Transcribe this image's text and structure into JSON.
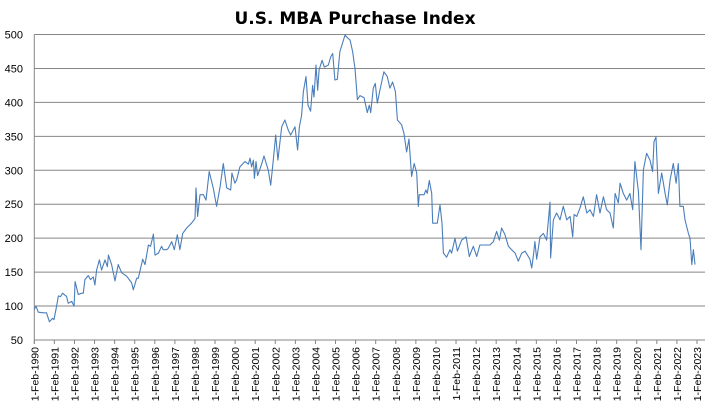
{
  "chart_data": {
    "type": "line",
    "title": "U.S. MBA Purchase Index",
    "xlabel": "",
    "ylabel": "",
    "ylim": [
      50,
      500
    ],
    "xlim": [
      1990.0,
      2023.0
    ],
    "grid": true,
    "legend": "none",
    "line_color": "#4a7ebb",
    "y_ticks": [
      50,
      100,
      150,
      200,
      250,
      300,
      350,
      400,
      450,
      500
    ],
    "x_tick_labels": [
      "1-Feb-1990",
      "1-Feb-1991",
      "1-Feb-1992",
      "1-Feb-1993",
      "1-Feb-1994",
      "1-Feb-1995",
      "1-Feb-1996",
      "1-Feb-1997",
      "1-Feb-1998",
      "1-Feb-1999",
      "1-Feb-2000",
      "1-Feb-2001",
      "1-Feb-2002",
      "1-Feb-2003",
      "1-Feb-2004",
      "1-Feb-2005",
      "1-Feb-2006",
      "1-Feb-2007",
      "1-Feb-2008",
      "1-Feb-2009",
      "1-Feb-2010",
      "1-Feb-2011",
      "1-Feb-2012",
      "1-Feb-2013",
      "1-Feb-2014",
      "1-Feb-2015",
      "1-Feb-2016",
      "1-Feb-2017",
      "1-Feb-2018",
      "1-Feb-2019",
      "1-Feb-2020",
      "1-Feb-2021",
      "1-Feb-2022",
      "1-Feb-2023"
    ],
    "series": [
      {
        "name": "MBA Purchase Index",
        "points": [
          [
            1990.0,
            95
          ],
          [
            1990.08,
            100
          ],
          [
            1990.2,
            91
          ],
          [
            1990.45,
            90
          ],
          [
            1990.61,
            90
          ],
          [
            1990.75,
            77
          ],
          [
            1990.91,
            82
          ],
          [
            1990.98,
            80
          ],
          [
            1991.11,
            100
          ],
          [
            1991.2,
            115
          ],
          [
            1991.31,
            114
          ],
          [
            1991.41,
            119
          ],
          [
            1991.61,
            114
          ],
          [
            1991.69,
            104
          ],
          [
            1991.86,
            107
          ],
          [
            1991.98,
            100
          ],
          [
            1992.03,
            136
          ],
          [
            1992.19,
            117
          ],
          [
            1992.36,
            119
          ],
          [
            1992.44,
            119
          ],
          [
            1992.52,
            139
          ],
          [
            1992.69,
            145
          ],
          [
            1992.8,
            139
          ],
          [
            1992.94,
            143
          ],
          [
            1993.02,
            131
          ],
          [
            1993.1,
            153
          ],
          [
            1993.24,
            168
          ],
          [
            1993.35,
            153
          ],
          [
            1993.52,
            168
          ],
          [
            1993.64,
            158
          ],
          [
            1993.69,
            175
          ],
          [
            1993.85,
            161
          ],
          [
            1994.02,
            137
          ],
          [
            1994.18,
            161
          ],
          [
            1994.35,
            149
          ],
          [
            1994.6,
            144
          ],
          [
            1994.85,
            134
          ],
          [
            1994.93,
            124
          ],
          [
            1995.1,
            141
          ],
          [
            1995.18,
            141
          ],
          [
            1995.4,
            169
          ],
          [
            1995.51,
            161
          ],
          [
            1995.68,
            190
          ],
          [
            1995.79,
            188
          ],
          [
            1995.93,
            206
          ],
          [
            1996.01,
            175
          ],
          [
            1996.18,
            178
          ],
          [
            1996.34,
            188
          ],
          [
            1996.42,
            183
          ],
          [
            1996.59,
            183
          ],
          [
            1996.67,
            185
          ],
          [
            1996.84,
            195
          ],
          [
            1996.97,
            183
          ],
          [
            1997.12,
            205
          ],
          [
            1997.25,
            183
          ],
          [
            1997.39,
            207
          ],
          [
            1997.59,
            215
          ],
          [
            1997.83,
            222
          ],
          [
            1998.0,
            229
          ],
          [
            1998.05,
            274
          ],
          [
            1998.13,
            232
          ],
          [
            1998.25,
            264
          ],
          [
            1998.42,
            264
          ],
          [
            1998.55,
            256
          ],
          [
            1998.71,
            298
          ],
          [
            1998.91,
            274
          ],
          [
            1999.08,
            247
          ],
          [
            1999.25,
            276
          ],
          [
            1999.41,
            310
          ],
          [
            1999.58,
            274
          ],
          [
            1999.78,
            271
          ],
          [
            1999.84,
            296
          ],
          [
            1999.99,
            281
          ],
          [
            2000.08,
            286
          ],
          [
            2000.24,
            305
          ],
          [
            2000.49,
            313
          ],
          [
            2000.66,
            309
          ],
          [
            2000.74,
            318
          ],
          [
            2000.82,
            305
          ],
          [
            2000.91,
            315
          ],
          [
            2000.96,
            288
          ],
          [
            2001.04,
            313
          ],
          [
            2001.12,
            292
          ],
          [
            2001.32,
            309
          ],
          [
            2001.44,
            321
          ],
          [
            2001.65,
            300
          ],
          [
            2001.77,
            278
          ],
          [
            2001.9,
            315
          ],
          [
            2002.02,
            352
          ],
          [
            2002.13,
            315
          ],
          [
            2002.32,
            364
          ],
          [
            2002.48,
            374
          ],
          [
            2002.65,
            359
          ],
          [
            2002.77,
            352
          ],
          [
            2002.98,
            364
          ],
          [
            2003.11,
            330
          ],
          [
            2003.2,
            364
          ],
          [
            2003.31,
            381
          ],
          [
            2003.4,
            416
          ],
          [
            2003.53,
            438
          ],
          [
            2003.63,
            396
          ],
          [
            2003.76,
            387
          ],
          [
            2003.86,
            425
          ],
          [
            2003.93,
            408
          ],
          [
            2004.03,
            455
          ],
          [
            2004.11,
            418
          ],
          [
            2004.18,
            448
          ],
          [
            2004.33,
            462
          ],
          [
            2004.44,
            452
          ],
          [
            2004.64,
            455
          ],
          [
            2004.76,
            467
          ],
          [
            2004.86,
            472
          ],
          [
            2004.97,
            433
          ],
          [
            2005.09,
            434
          ],
          [
            2005.22,
            475
          ],
          [
            2005.47,
            499
          ],
          [
            2005.64,
            494
          ],
          [
            2005.72,
            492
          ],
          [
            2005.85,
            475
          ],
          [
            2005.97,
            450
          ],
          [
            2006.09,
            404
          ],
          [
            2006.22,
            410
          ],
          [
            2006.42,
            407
          ],
          [
            2006.58,
            385
          ],
          [
            2006.68,
            396
          ],
          [
            2006.75,
            385
          ],
          [
            2006.88,
            421
          ],
          [
            2006.98,
            428
          ],
          [
            2007.08,
            399
          ],
          [
            2007.21,
            418
          ],
          [
            2007.41,
            445
          ],
          [
            2007.58,
            438
          ],
          [
            2007.71,
            421
          ],
          [
            2007.84,
            430
          ],
          [
            2007.98,
            416
          ],
          [
            2008.08,
            374
          ],
          [
            2008.29,
            367
          ],
          [
            2008.41,
            354
          ],
          [
            2008.54,
            327
          ],
          [
            2008.66,
            346
          ],
          [
            2008.79,
            291
          ],
          [
            2008.92,
            310
          ],
          [
            2009.04,
            296
          ],
          [
            2009.12,
            247
          ],
          [
            2009.17,
            264
          ],
          [
            2009.41,
            264
          ],
          [
            2009.5,
            271
          ],
          [
            2009.57,
            266
          ],
          [
            2009.67,
            285
          ],
          [
            2009.79,
            266
          ],
          [
            2009.84,
            222
          ],
          [
            2010.07,
            222
          ],
          [
            2010.2,
            249
          ],
          [
            2010.3,
            222
          ],
          [
            2010.37,
            178
          ],
          [
            2010.53,
            172
          ],
          [
            2010.7,
            183
          ],
          [
            2010.78,
            178
          ],
          [
            2010.95,
            200
          ],
          [
            2011.07,
            181
          ],
          [
            2011.28,
            197
          ],
          [
            2011.5,
            202
          ],
          [
            2011.66,
            173
          ],
          [
            2011.86,
            188
          ],
          [
            2012.03,
            173
          ],
          [
            2012.19,
            190
          ],
          [
            2012.44,
            190
          ],
          [
            2012.69,
            190
          ],
          [
            2012.86,
            195
          ],
          [
            2013.02,
            210
          ],
          [
            2013.16,
            197
          ],
          [
            2013.27,
            215
          ],
          [
            2013.44,
            205
          ],
          [
            2013.61,
            188
          ],
          [
            2013.77,
            183
          ],
          [
            2013.94,
            178
          ],
          [
            2014.1,
            166
          ],
          [
            2014.27,
            178
          ],
          [
            2014.44,
            181
          ],
          [
            2014.68,
            169
          ],
          [
            2014.77,
            156
          ],
          [
            2014.85,
            173
          ],
          [
            2014.93,
            195
          ],
          [
            2015.02,
            169
          ],
          [
            2015.18,
            202
          ],
          [
            2015.35,
            207
          ],
          [
            2015.51,
            197
          ],
          [
            2015.68,
            253
          ],
          [
            2015.71,
            171
          ],
          [
            2015.85,
            227
          ],
          [
            2016.01,
            237
          ],
          [
            2016.18,
            227
          ],
          [
            2016.34,
            247
          ],
          [
            2016.51,
            227
          ],
          [
            2016.68,
            232
          ],
          [
            2016.81,
            202
          ],
          [
            2016.88,
            235
          ],
          [
            2017.01,
            232
          ],
          [
            2017.17,
            244
          ],
          [
            2017.34,
            261
          ],
          [
            2017.51,
            237
          ],
          [
            2017.67,
            242
          ],
          [
            2017.84,
            232
          ],
          [
            2018.0,
            264
          ],
          [
            2018.17,
            237
          ],
          [
            2018.34,
            261
          ],
          [
            2018.5,
            242
          ],
          [
            2018.67,
            237
          ],
          [
            2018.83,
            215
          ],
          [
            2018.92,
            266
          ],
          [
            2019.08,
            252
          ],
          [
            2019.17,
            281
          ],
          [
            2019.33,
            266
          ],
          [
            2019.5,
            256
          ],
          [
            2019.66,
            266
          ],
          [
            2019.8,
            242
          ],
          [
            2019.91,
            313
          ],
          [
            2020.08,
            269
          ],
          [
            2020.21,
            183
          ],
          [
            2020.33,
            301
          ],
          [
            2020.49,
            325
          ],
          [
            2020.66,
            315
          ],
          [
            2020.79,
            298
          ],
          [
            2020.86,
            342
          ],
          [
            2020.96,
            349
          ],
          [
            2021.08,
            266
          ],
          [
            2021.24,
            296
          ],
          [
            2021.41,
            266
          ],
          [
            2021.52,
            249
          ],
          [
            2021.66,
            286
          ],
          [
            2021.82,
            310
          ],
          [
            2021.96,
            281
          ],
          [
            2022.07,
            310
          ],
          [
            2022.15,
            247
          ],
          [
            2022.32,
            247
          ],
          [
            2022.4,
            227
          ],
          [
            2022.57,
            207
          ],
          [
            2022.65,
            200
          ],
          [
            2022.74,
            161
          ],
          [
            2022.82,
            183
          ],
          [
            2022.9,
            161
          ]
        ]
      }
    ]
  }
}
